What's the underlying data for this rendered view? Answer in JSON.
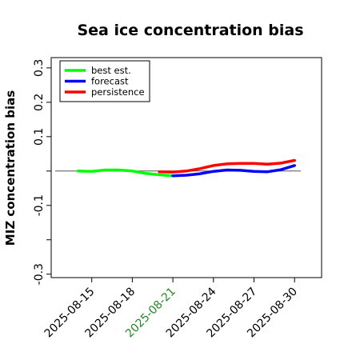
{
  "chart_data": {
    "type": "line",
    "title": "Sea ice concentration bias",
    "xlabel": "",
    "ylabel": "MIZ concentration bias",
    "ylim": [
      -0.31,
      0.33
    ],
    "yticks": [
      0.3,
      0.2,
      0.1,
      0.0,
      -0.1,
      -0.2,
      -0.3
    ],
    "ytick_labels": [
      "0.3",
      "0.2",
      "0.1",
      "",
      "-0.1",
      "",
      "-0.3"
    ],
    "xlim": [
      "2025-08-12",
      "2025-09-01"
    ],
    "xticks": [
      "2025-08-15",
      "2025-08-18",
      "2025-08-21",
      "2025-08-24",
      "2025-08-27",
      "2025-08-30"
    ],
    "highlight_tick": "2025-08-21",
    "highlight_color": "#228B22",
    "reference_line": {
      "y": 0.0,
      "color": "#555555"
    },
    "legend_position": "top-left",
    "grid": false,
    "series": [
      {
        "name": "best est.",
        "color": "#00ff00",
        "x": [
          "2025-08-14",
          "2025-08-15",
          "2025-08-16",
          "2025-08-17",
          "2025-08-18",
          "2025-08-19",
          "2025-08-20",
          "2025-08-21"
        ],
        "values": [
          0.0,
          -0.001,
          0.003,
          0.003,
          0.0,
          -0.007,
          -0.011,
          -0.014
        ]
      },
      {
        "name": "forecast",
        "color": "#0000ff",
        "x": [
          "2025-08-21",
          "2025-08-22",
          "2025-08-23",
          "2025-08-24",
          "2025-08-25",
          "2025-08-26",
          "2025-08-27",
          "2025-08-28",
          "2025-08-29",
          "2025-08-30"
        ],
        "values": [
          -0.014,
          -0.012,
          -0.008,
          -0.001,
          0.003,
          0.002,
          -0.001,
          -0.002,
          0.004,
          0.016
        ]
      },
      {
        "name": "persistence",
        "color": "#ff0000",
        "x": [
          "2025-08-20",
          "2025-08-21",
          "2025-08-22",
          "2025-08-23",
          "2025-08-24",
          "2025-08-25",
          "2025-08-26",
          "2025-08-27",
          "2025-08-28",
          "2025-08-29",
          "2025-08-30"
        ],
        "values": [
          -0.002,
          -0.003,
          0.0,
          0.007,
          0.016,
          0.021,
          0.022,
          0.022,
          0.02,
          0.023,
          0.031
        ]
      }
    ]
  }
}
